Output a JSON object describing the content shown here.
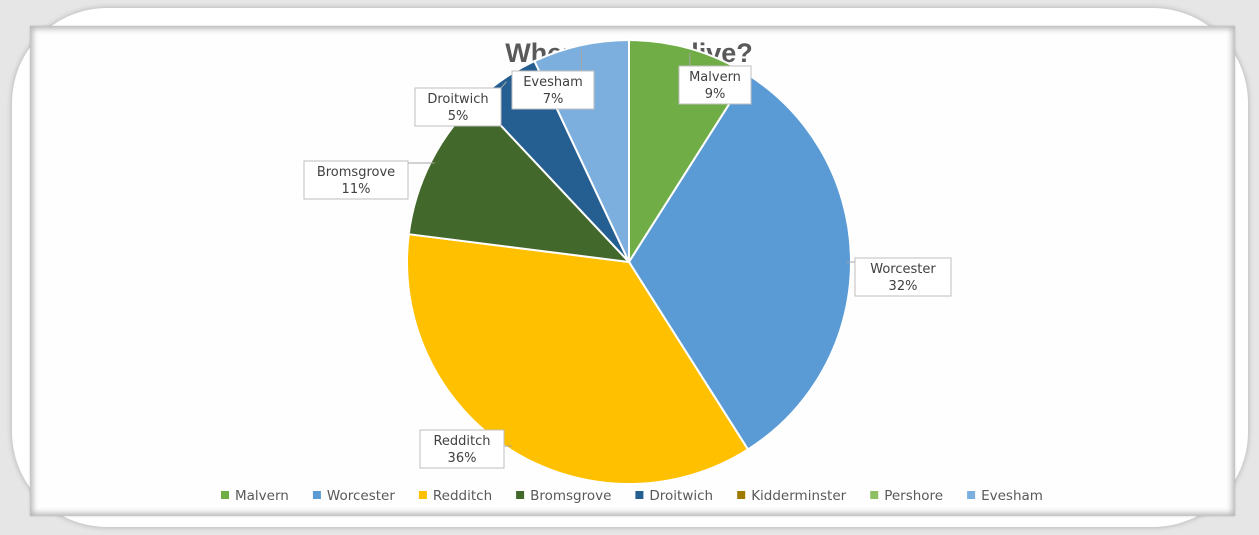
{
  "chart_data": {
    "type": "pie",
    "title": "Where do you live?",
    "categories": [
      "Malvern",
      "Worcester",
      "Redditch",
      "Bromsgrove",
      "Droitwich",
      "Kidderminster",
      "Pershore",
      "Evesham"
    ],
    "values": [
      9,
      32,
      36,
      11,
      5,
      0,
      0,
      7
    ],
    "percent_labels": [
      "9%",
      "32%",
      "36%",
      "11%",
      "5%",
      "",
      "",
      "7%"
    ],
    "colors": [
      "#70AD47",
      "#5B9BD5",
      "#FFC000",
      "#43682B",
      "#255E91",
      "#9E7A00",
      "#8FBF61",
      "#7CAFDD"
    ],
    "legend_position": "bottom",
    "data_labels": "callout"
  }
}
